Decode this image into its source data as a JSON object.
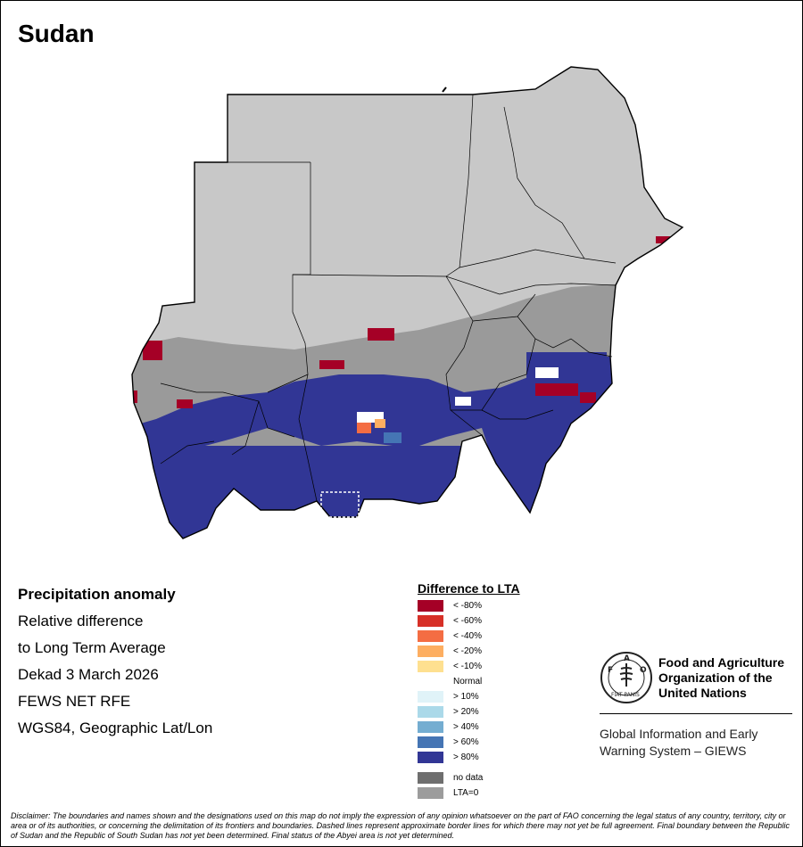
{
  "title": "Sudan",
  "info": {
    "heading": "Precipitation anomaly",
    "line1": "Relative difference",
    "line2": "to Long Term Average",
    "period": "Dekad 3 March 2026",
    "source": "FEWS NET RFE",
    "projection": "WGS84, Geographic Lat/Lon"
  },
  "legend": {
    "title": "Difference to LTA",
    "items": [
      {
        "label": "< -80%",
        "color": "#a50026"
      },
      {
        "label": "< -60%",
        "color": "#d73027"
      },
      {
        "label": "< -40%",
        "color": "#f46d43"
      },
      {
        "label": "< -20%",
        "color": "#fdae61"
      },
      {
        "label": "< -10%",
        "color": "#fee090"
      },
      {
        "label": "Normal",
        "color": "#ffffff"
      },
      {
        "label": "> 10%",
        "color": "#e0f3f8"
      },
      {
        "label": "> 20%",
        "color": "#abd9e9"
      },
      {
        "label": "> 40%",
        "color": "#74add1"
      },
      {
        "label": "> 60%",
        "color": "#4575b4"
      },
      {
        "label": "> 80%",
        "color": "#313695"
      }
    ],
    "extra": [
      {
        "label": "no data",
        "color": "#6e6e6e"
      },
      {
        "label": "LTA=0",
        "color": "#9c9c9c"
      }
    ]
  },
  "map_colors": {
    "dry_land": "#c8c8c8",
    "lta_zero": "#9a9a9a",
    "wet_anomaly": "#313695",
    "dry_anomaly": "#a50026",
    "mid_blue": "#4575b4",
    "borders": "#000000"
  },
  "logo": {
    "org_line1": "Food and Agriculture",
    "org_line2": "Organization of the",
    "org_line3": "United Nations",
    "seal_text": "FAO",
    "motto": "FIAT PANIS",
    "system_line1": "Global Information and Early",
    "system_line2": "Warning System – GIEWS"
  },
  "disclaimer": "Disclaimer: The boundaries and names shown and the designations used on this map do not imply the expression of any opinion whatsoever on the part of FAO concerning the legal status of any country, territory, city or area or of its authorities, or concerning the delimitation of its frontiers and boundaries. Dashed lines represent approximate border lines for which there may not yet be full agreement. Final boundary between the Republic of Sudan and the Republic of South Sudan has not yet been determined. Final status of the Abyei area is not yet determined."
}
